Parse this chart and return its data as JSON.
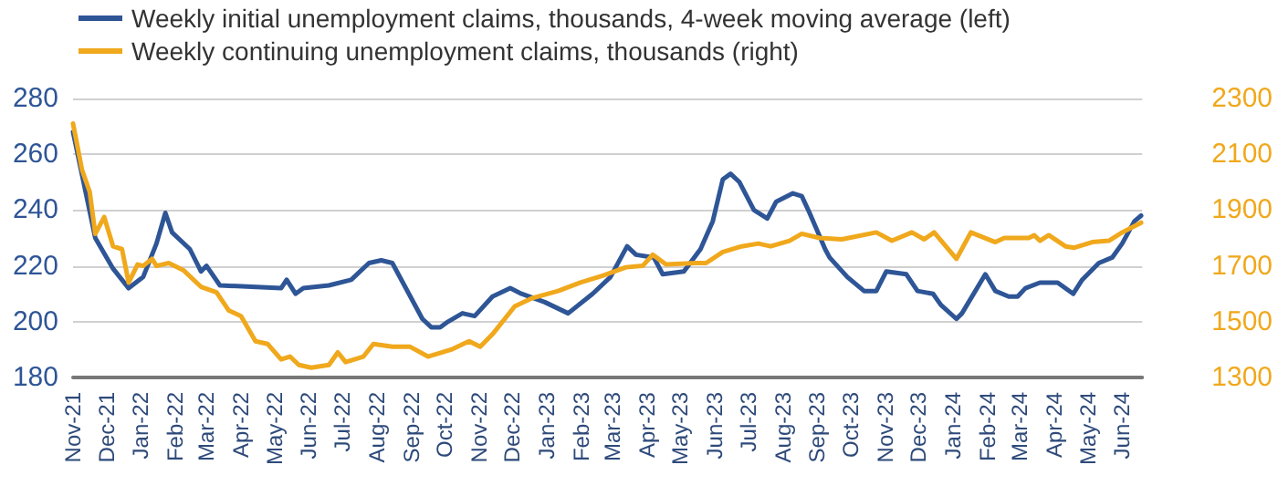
{
  "chart_data": {
    "type": "line",
    "legend": "top left",
    "grid": "y",
    "marker": "none",
    "line_style": "solid",
    "xlim": [
      "2021-11-01",
      "2024-06-19"
    ],
    "xticks": [
      {
        "value": "2021-11-01",
        "label": "Nov-21"
      },
      {
        "value": "2021-12-01",
        "label": "Dec-21"
      },
      {
        "value": "2022-01-01",
        "label": "Jan-22"
      },
      {
        "value": "2022-02-01",
        "label": "Feb-22"
      },
      {
        "value": "2022-03-01",
        "label": "Mar-22"
      },
      {
        "value": "2022-04-01",
        "label": "Apr-22"
      },
      {
        "value": "2022-05-01",
        "label": "May-22"
      },
      {
        "value": "2022-06-01",
        "label": "Jun-22"
      },
      {
        "value": "2022-07-01",
        "label": "Jul-22"
      },
      {
        "value": "2022-08-01",
        "label": "Aug-22"
      },
      {
        "value": "2022-09-01",
        "label": "Sep-22"
      },
      {
        "value": "2022-10-01",
        "label": "Oct-22"
      },
      {
        "value": "2022-11-01",
        "label": "Nov-22"
      },
      {
        "value": "2022-12-01",
        "label": "Dec-22"
      },
      {
        "value": "2023-01-01",
        "label": "Jan-23"
      },
      {
        "value": "2023-02-01",
        "label": "Feb-23"
      },
      {
        "value": "2023-03-01",
        "label": "Mar-23"
      },
      {
        "value": "2023-04-01",
        "label": "Apr-23"
      },
      {
        "value": "2023-05-01",
        "label": "May-23"
      },
      {
        "value": "2023-06-01",
        "label": "Jun-23"
      },
      {
        "value": "2023-07-01",
        "label": "Jul-23"
      },
      {
        "value": "2023-08-01",
        "label": "Aug-23"
      },
      {
        "value": "2023-09-01",
        "label": "Sep-23"
      },
      {
        "value": "2023-10-01",
        "label": "Oct-23"
      },
      {
        "value": "2023-11-01",
        "label": "Nov-23"
      },
      {
        "value": "2023-12-01",
        "label": "Dec-23"
      },
      {
        "value": "2024-01-01",
        "label": "Jan-24"
      },
      {
        "value": "2024-02-01",
        "label": "Feb-24"
      },
      {
        "value": "2024-03-01",
        "label": "Mar-24"
      },
      {
        "value": "2024-04-01",
        "label": "Apr-24"
      },
      {
        "value": "2024-05-01",
        "label": "May-24"
      },
      {
        "value": "2024-06-01",
        "label": "Jun-24"
      }
    ],
    "ylim": [
      180,
      280
    ],
    "yticks": [
      180,
      200,
      220,
      240,
      260,
      280
    ],
    "y2lim": [
      1300,
      2300
    ],
    "y2ticks": [
      1300,
      1500,
      1700,
      1900,
      2100,
      2300
    ],
    "series": [
      {
        "name": "Weekly initial unemployment claims, thousands, 4-week moving average (left)",
        "color": "#2e5596",
        "x": [
          "2021-11-01",
          "2021-11-21",
          "2021-12-07",
          "2021-12-21",
          "2022-01-03",
          "2022-01-15",
          "2022-01-23",
          "2022-01-29",
          "2022-02-14",
          "2022-02-24",
          "2022-03-01",
          "2022-03-13",
          "2022-05-07",
          "2022-05-12",
          "2022-05-20",
          "2022-05-27",
          "2022-06-19",
          "2022-07-09",
          "2022-07-25",
          "2022-08-05",
          "2022-08-15",
          "2022-09-11",
          "2022-09-19",
          "2022-09-27",
          "2022-10-04",
          "2022-10-17",
          "2022-10-28",
          "2022-11-13",
          "2022-11-29",
          "2022-12-09",
          "2022-12-30",
          "2023-01-20",
          "2023-02-11",
          "2023-02-27",
          "2023-03-14",
          "2023-03-22",
          "2023-04-07",
          "2023-04-15",
          "2023-05-04",
          "2023-05-19",
          "2023-05-30",
          "2023-06-08",
          "2023-06-15",
          "2023-06-23",
          "2023-07-06",
          "2023-07-18",
          "2023-07-26",
          "2023-08-10",
          "2023-08-18",
          "2023-08-25",
          "2023-09-08",
          "2023-09-12",
          "2023-09-28",
          "2023-10-13",
          "2023-10-24",
          "2023-11-02",
          "2023-11-20",
          "2023-11-30",
          "2023-12-14",
          "2023-12-21",
          "2024-01-04",
          "2024-01-09",
          "2024-01-30",
          "2024-02-08",
          "2024-02-20",
          "2024-02-28",
          "2024-03-06",
          "2024-03-19",
          "2024-04-04",
          "2024-04-18",
          "2024-04-26",
          "2024-05-11",
          "2024-05-23",
          "2024-06-01",
          "2024-06-12",
          "2024-06-18"
        ],
        "values": [
          268,
          230,
          219,
          212,
          216,
          228,
          239,
          232,
          226,
          218,
          220,
          213,
          212,
          215,
          210,
          212,
          213,
          215,
          221,
          222,
          221,
          201,
          198,
          198,
          200,
          203,
          202,
          209,
          212,
          210,
          207,
          203,
          210,
          216,
          227,
          224,
          223,
          217,
          218,
          226,
          236,
          251,
          253,
          250,
          240,
          237,
          243,
          246,
          245,
          239,
          226,
          223,
          216,
          211,
          211,
          218,
          217,
          211,
          210,
          206,
          201,
          203,
          217,
          211,
          209,
          209,
          212,
          214,
          214,
          210,
          215,
          221,
          223,
          228,
          236,
          238
        ]
      },
      {
        "name": "Weekly continuing unemployment claims, thousands (right)",
        "color": "#f0a81c",
        "axis": "y2",
        "x": [
          "2021-11-01",
          "2021-11-09",
          "2021-11-16",
          "2021-11-21",
          "2021-11-29",
          "2021-12-07",
          "2021-12-15",
          "2021-12-21",
          "2021-12-29",
          "2022-01-03",
          "2022-01-11",
          "2022-01-15",
          "2022-01-26",
          "2022-02-08",
          "2022-02-24",
          "2022-03-10",
          "2022-03-21",
          "2022-04-01",
          "2022-04-14",
          "2022-04-25",
          "2022-05-07",
          "2022-05-15",
          "2022-05-23",
          "2022-06-03",
          "2022-06-19",
          "2022-06-27",
          "2022-07-04",
          "2022-07-20",
          "2022-07-29",
          "2022-08-15",
          "2022-08-31",
          "2022-09-16",
          "2022-10-07",
          "2022-10-23",
          "2022-11-02",
          "2022-11-13",
          "2022-12-03",
          "2022-12-19",
          "2023-01-11",
          "2023-01-31",
          "2023-02-20",
          "2023-03-13",
          "2023-03-28",
          "2023-04-06",
          "2023-04-18",
          "2023-05-15",
          "2023-05-24",
          "2023-06-08",
          "2023-06-25",
          "2023-07-10",
          "2023-07-21",
          "2023-08-07",
          "2023-08-18",
          "2023-09-03",
          "2023-09-23",
          "2023-10-24",
          "2023-11-07",
          "2023-11-25",
          "2023-12-06",
          "2023-12-15",
          "2024-01-04",
          "2024-01-17",
          "2024-02-08",
          "2024-02-16",
          "2024-03-09",
          "2024-03-14",
          "2024-03-19",
          "2024-03-27",
          "2024-04-11",
          "2024-04-19",
          "2024-05-05",
          "2024-05-20",
          "2024-06-01",
          "2024-06-18"
        ],
        "values": [
          2210,
          2045,
          1965,
          1815,
          1875,
          1770,
          1760,
          1640,
          1705,
          1700,
          1725,
          1700,
          1710,
          1685,
          1625,
          1605,
          1540,
          1520,
          1430,
          1420,
          1365,
          1375,
          1345,
          1335,
          1345,
          1390,
          1355,
          1375,
          1420,
          1410,
          1410,
          1375,
          1400,
          1430,
          1410,
          1455,
          1555,
          1585,
          1610,
          1640,
          1665,
          1695,
          1700,
          1740,
          1705,
          1710,
          1710,
          1750,
          1770,
          1780,
          1770,
          1790,
          1815,
          1800,
          1795,
          1820,
          1790,
          1820,
          1795,
          1820,
          1725,
          1820,
          1785,
          1800,
          1800,
          1810,
          1790,
          1810,
          1770,
          1765,
          1785,
          1790,
          1820,
          1855
        ]
      }
    ]
  }
}
